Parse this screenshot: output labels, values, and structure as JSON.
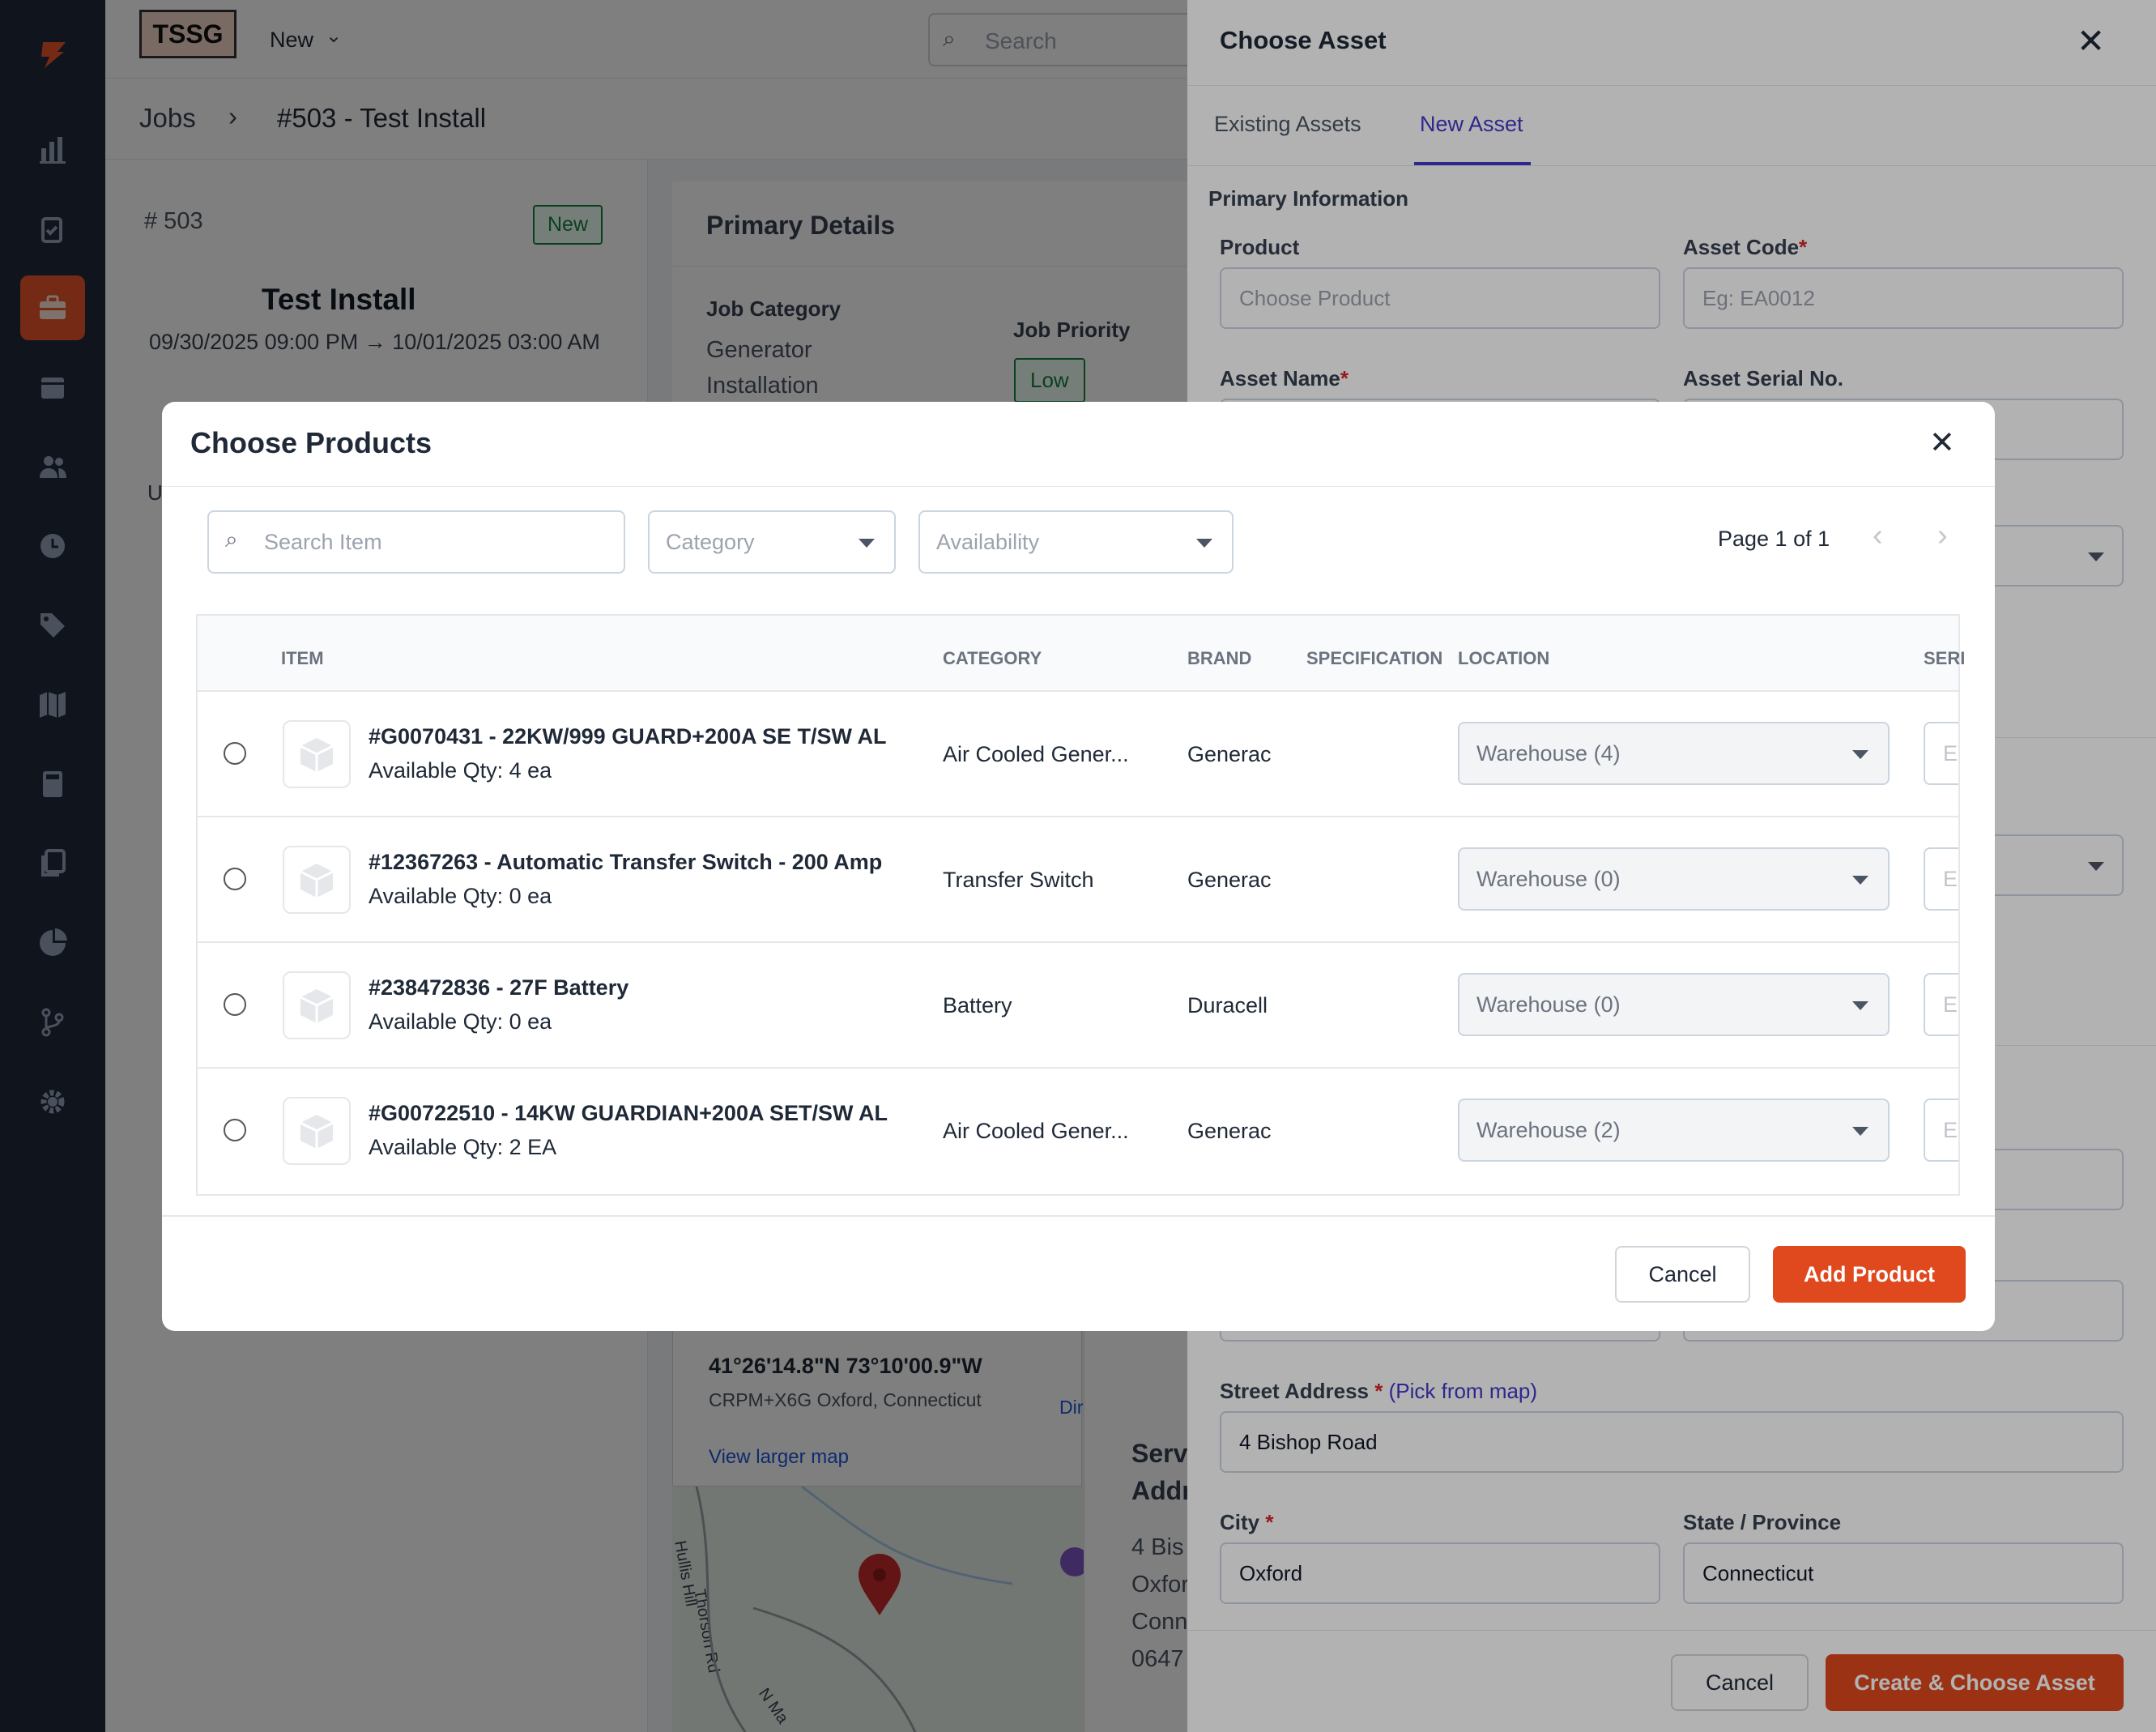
{
  "app": {
    "logo": "TSSG"
  },
  "topbar": {
    "new_label": "New",
    "search_placeholder": "Search"
  },
  "breadcrumb": {
    "root": "Jobs",
    "current": "#503 - Test Install"
  },
  "job": {
    "number": "# 503",
    "status": "New",
    "title": "Test Install",
    "dates": "09/30/2025 09:00 PM → 10/01/2025 03:00 AM",
    "stub": "U"
  },
  "primary_details": {
    "heading": "Primary Details",
    "category_label": "Job Category",
    "category_value_1": "Generator",
    "category_value_2": "Installation",
    "priority_label": "Job Priority",
    "priority_value": "Low"
  },
  "map": {
    "coords": "41°26'14.8\"N 73°10'00.9\"W",
    "plus_code": "CRPM+X6G Oxford, Connecticut",
    "view_larger": "View larger map",
    "directions": "Dir",
    "road_1": "Hullis Hill",
    "road_2": "Thorson Rd",
    "road_3": "N Ma"
  },
  "service_address": {
    "heading_1": "Serv",
    "heading_2": "Addr",
    "line_1": "4 Bis",
    "line_2": "Oxfor",
    "line_3": "Conn",
    "line_4": "0647"
  },
  "asset_panel": {
    "title": "Choose Asset",
    "tabs": [
      "Existing Assets",
      "New Asset"
    ],
    "section": "Primary Information",
    "product_label": "Product",
    "product_placeholder": "Choose Product",
    "asset_code_label": "Asset Code",
    "asset_code_placeholder": "Eg: EA0012",
    "asset_name_label": "Asset Name",
    "serial_label": "Asset Serial No.",
    "required_mark": "*",
    "street_label": "Street Address",
    "street_pick": "(Pick from map)",
    "street_value": "4 Bishop Road",
    "city_label": "City",
    "city_value": "Oxford",
    "state_label": "State / Province",
    "state_value": "Connecticut",
    "cancel": "Cancel",
    "create": "Create & Choose Asset"
  },
  "modal": {
    "title": "Choose Products",
    "search_placeholder": "Search Item",
    "category_placeholder": "Category",
    "availability_placeholder": "Availability",
    "page_info": "Page 1 of 1",
    "columns": [
      "ITEM",
      "CATEGORY",
      "BRAND",
      "SPECIFICATION",
      "LOCATION",
      "SERI"
    ],
    "serial_placeholder": "Eg",
    "rows": [
      {
        "name": "#G0070431 - 22KW/999 GUARD+200A SE T/SW AL",
        "qty": "Available Qty: 4 ea",
        "category": "Air Cooled Gener...",
        "brand": "Generac",
        "location": "Warehouse (4)"
      },
      {
        "name": "#12367263 - Automatic Transfer Switch - 200 Amp",
        "qty": "Available Qty: 0 ea",
        "category": "Transfer Switch",
        "brand": "Generac",
        "location": "Warehouse (0)"
      },
      {
        "name": "#238472836 - 27F Battery",
        "qty": "Available Qty: 0 ea",
        "category": "Battery",
        "brand": "Duracell",
        "location": "Warehouse (0)"
      },
      {
        "name": "#G00722510 - 14KW GUARDIAN+200A SET/SW AL",
        "qty": "Available Qty: 2 EA",
        "category": "Air Cooled Gener...",
        "brand": "Generac",
        "location": "Warehouse (2)"
      }
    ],
    "cancel": "Cancel",
    "add": "Add Product"
  },
  "colors": {
    "accent": "#e0481e",
    "sidebar": "#1e293b",
    "tab_active": "#4338ca",
    "success": "#15803d"
  }
}
